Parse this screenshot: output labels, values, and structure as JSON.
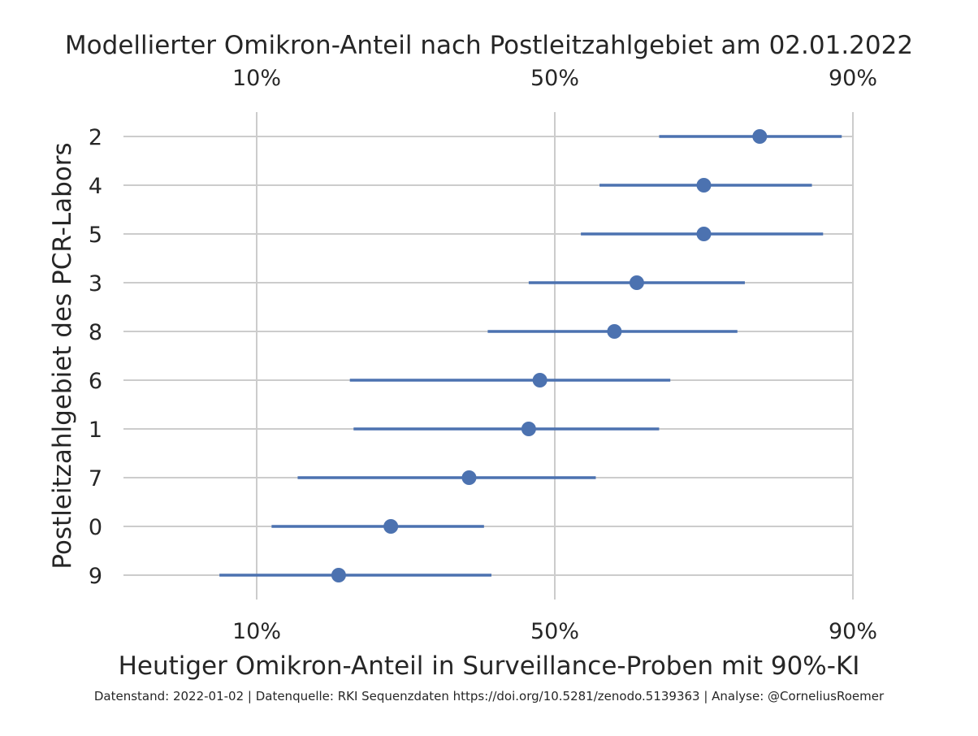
{
  "chart_data": {
    "type": "scatter",
    "title": "Modellierter Omikron-Anteil nach Postleitzahlgebiet am 02.01.2022",
    "xlabel": "Heutiger Omikron-Anteil in Surveillance-Proben mit 90%-KI",
    "ylabel": "Postleitzahlgebiet des PCR-Labors",
    "x_ticks": [
      "10%",
      "50%",
      "90%"
    ],
    "grid": true,
    "categories": [
      "2",
      "4",
      "5",
      "3",
      "8",
      "6",
      "1",
      "7",
      "0",
      "9"
    ],
    "series": [
      {
        "values": [
          0.775,
          0.7,
          0.7,
          0.61,
          0.58,
          0.48,
          0.465,
          0.385,
          0.28,
          0.21
        ],
        "ci_low": [
          0.64,
          0.56,
          0.535,
          0.465,
          0.41,
          0.225,
          0.23,
          0.155,
          0.12,
          0.05
        ],
        "ci_high": [
          0.885,
          0.845,
          0.86,
          0.755,
          0.745,
          0.655,
          0.64,
          0.555,
          0.405,
          0.415
        ]
      }
    ],
    "color": "#4c72b0",
    "footer": "Datenstand: 2022-01-02 | Datenquelle: RKI Sequenzdaten https://doi.org/10.5281/zenodo.5139363 | Analyse: @CorneliusRoemer"
  }
}
